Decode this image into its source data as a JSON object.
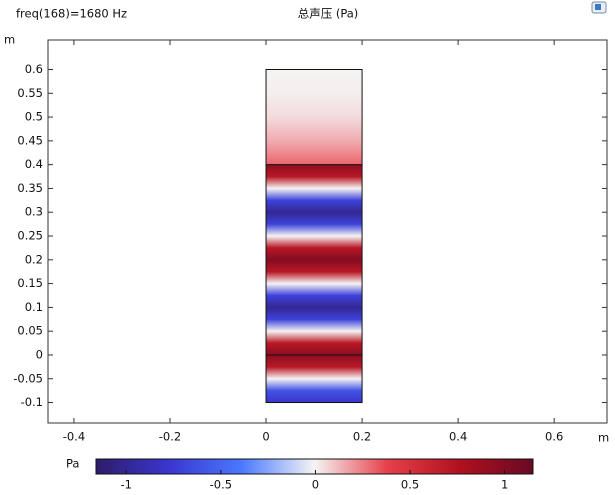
{
  "chart_data": {
    "type": "field",
    "annotation": "freq(168)=1680 Hz",
    "title": "总声压 (Pa)",
    "x_label": "m",
    "y_label": "m",
    "xlim": [
      -0.454,
      0.71
    ],
    "xticks": [
      -0.4,
      -0.2,
      0,
      0.2,
      0.4,
      0.6
    ],
    "ylim": [
      -0.143,
      0.662
    ],
    "yticks": [
      -0.1,
      -0.05,
      0,
      0.05,
      0.1,
      0.15,
      0.2,
      0.25,
      0.3,
      0.35,
      0.4,
      0.45,
      0.5,
      0.55,
      0.6
    ],
    "domain": {
      "x": [
        0,
        0.2
      ],
      "y": [
        -0.1,
        0.6
      ]
    },
    "boundaries": [
      0,
      0.4
    ],
    "profile": {
      "y": [
        -0.1,
        -0.075,
        -0.05,
        -0.025,
        0,
        0.025,
        0.05,
        0.075,
        0.1,
        0.125,
        0.15,
        0.175,
        0.2,
        0.225,
        0.25,
        0.275,
        0.3,
        0.325,
        0.35,
        0.375,
        0.4,
        0.4,
        0.45,
        0.5,
        0.55,
        0.6
      ],
      "p": [
        -0.8,
        -0.6,
        0,
        0.7,
        0.95,
        0.7,
        0,
        -0.7,
        -1,
        -0.7,
        0,
        0.7,
        1,
        0.7,
        0,
        -0.7,
        -1,
        -0.7,
        0,
        0.7,
        0.95,
        0.3,
        0.15,
        0.05,
        0.01,
        0
      ]
    },
    "colorbar_label": "Pa",
    "clim": [
      -1.16,
      1.15
    ],
    "cticks": [
      -1,
      -0.5,
      0,
      0.5,
      1
    ],
    "colormap": [
      "#2e1c69",
      "#3a36d0",
      "#4a78ff",
      "#f5f5f5",
      "#e8404a",
      "#b0101e",
      "#680a24"
    ]
  }
}
